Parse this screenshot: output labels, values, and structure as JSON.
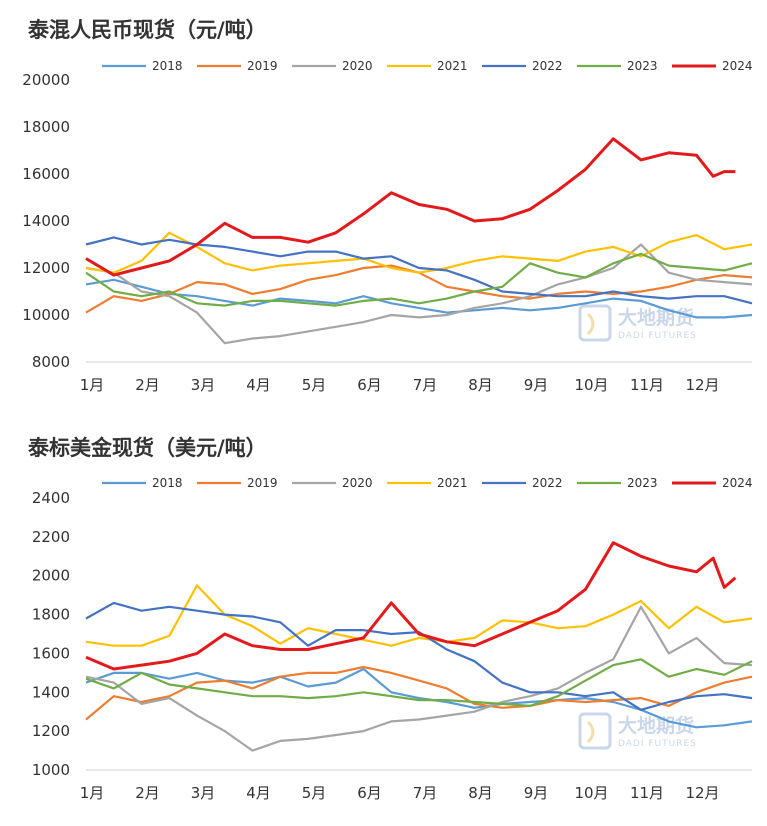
{
  "watermark": {
    "main": "大地期货",
    "sub": "DADI FUTURES"
  },
  "colors": {
    "2018": "#5b9bd5",
    "2019": "#ed7d31",
    "2020": "#a5a5a5",
    "2021": "#ffc000",
    "2022": "#4472c4",
    "2023": "#70ad47",
    "2024": "#e31a1c"
  },
  "chart_data": [
    {
      "type": "line",
      "title": "泰混人民币现货（元/吨）",
      "ylim": [
        8000,
        20000
      ],
      "yticks": [
        8000,
        10000,
        12000,
        14000,
        16000,
        18000,
        20000
      ],
      "xlim": [
        0,
        12
      ],
      "month_labels": [
        "1月",
        "2月",
        "3月",
        "4月",
        "5月",
        "6月",
        "7月",
        "8月",
        "9月",
        "10月",
        "11月",
        "12月"
      ],
      "grid": false,
      "legend": "top",
      "series": [
        {
          "name": "2018",
          "x": [
            0,
            0.5,
            1,
            1.5,
            2,
            2.5,
            3,
            3.5,
            4,
            4.5,
            5,
            5.5,
            6,
            6.5,
            7,
            7.5,
            8,
            8.5,
            9,
            9.5,
            10,
            10.5,
            11,
            11.5,
            12
          ],
          "y": [
            11300,
            11500,
            11200,
            10900,
            10800,
            10600,
            10400,
            10700,
            10600,
            10500,
            10800,
            10500,
            10300,
            10100,
            10200,
            10300,
            10200,
            10300,
            10500,
            10700,
            10600,
            10200,
            9900,
            9900,
            10000
          ]
        },
        {
          "name": "2019",
          "x": [
            0,
            0.5,
            1,
            1.5,
            2,
            2.5,
            3,
            3.5,
            4,
            4.5,
            5,
            5.5,
            6,
            6.5,
            7,
            7.5,
            8,
            8.5,
            9,
            9.5,
            10,
            10.5,
            11,
            11.5,
            12
          ],
          "y": [
            10100,
            10800,
            10600,
            10900,
            11400,
            11300,
            10900,
            11100,
            11500,
            11700,
            12000,
            12100,
            11800,
            11200,
            11000,
            10800,
            10700,
            10900,
            11000,
            10900,
            11000,
            11200,
            11500,
            11700,
            11600
          ]
        },
        {
          "name": "2020",
          "x": [
            0,
            0.5,
            1,
            1.5,
            2,
            2.5,
            3,
            3.5,
            4,
            4.5,
            5,
            5.5,
            6,
            6.5,
            7,
            7.5,
            8,
            8.5,
            9,
            9.5,
            10,
            10.5,
            11,
            11.5,
            12
          ],
          "y": [
            12000,
            11800,
            11000,
            10800,
            10100,
            8800,
            9000,
            9100,
            9300,
            9500,
            9700,
            10000,
            9900,
            10000,
            10300,
            10500,
            10800,
            11300,
            11600,
            12000,
            13000,
            11800,
            11500,
            11400,
            11300
          ]
        },
        {
          "name": "2021",
          "x": [
            0,
            0.5,
            1,
            1.5,
            2,
            2.5,
            3,
            3.5,
            4,
            4.5,
            5,
            5.5,
            6,
            6.5,
            7,
            7.5,
            8,
            8.5,
            9,
            9.5,
            10,
            10.5,
            11,
            11.5,
            12
          ],
          "y": [
            12000,
            11800,
            12300,
            13500,
            12900,
            12200,
            11900,
            12100,
            12200,
            12300,
            12400,
            12000,
            11800,
            12000,
            12300,
            12500,
            12400,
            12300,
            12700,
            12900,
            12500,
            13100,
            13400,
            12800,
            13000
          ]
        },
        {
          "name": "2022",
          "x": [
            0,
            0.5,
            1,
            1.5,
            2,
            2.5,
            3,
            3.5,
            4,
            4.5,
            5,
            5.5,
            6,
            6.5,
            7,
            7.5,
            8,
            8.5,
            9,
            9.5,
            10,
            10.5,
            11,
            11.5,
            12
          ],
          "y": [
            13000,
            13300,
            13000,
            13200,
            13000,
            12900,
            12700,
            12500,
            12700,
            12700,
            12400,
            12500,
            12000,
            11900,
            11500,
            11000,
            10900,
            10800,
            10800,
            11000,
            10800,
            10700,
            10800,
            10800,
            10500
          ]
        },
        {
          "name": "2023",
          "x": [
            0,
            0.5,
            1,
            1.5,
            2,
            2.5,
            3,
            3.5,
            4,
            4.5,
            5,
            5.5,
            6,
            6.5,
            7,
            7.5,
            8,
            8.5,
            9,
            9.5,
            10,
            10.5,
            11,
            11.5,
            12
          ],
          "y": [
            11800,
            11000,
            10800,
            11000,
            10500,
            10400,
            10600,
            10600,
            10500,
            10400,
            10600,
            10700,
            10500,
            10700,
            11000,
            11200,
            12200,
            11800,
            11600,
            12200,
            12600,
            12100,
            12000,
            11900,
            12200
          ]
        },
        {
          "name": "2024",
          "x": [
            0,
            0.5,
            1,
            1.5,
            2,
            2.5,
            3,
            3.5,
            4,
            4.5,
            5,
            5.5,
            6,
            6.5,
            7,
            7.5,
            8,
            8.5,
            9,
            9.5,
            10,
            10.5,
            11,
            11.3,
            11.5,
            11.7
          ],
          "y": [
            12400,
            11700,
            12000,
            12300,
            13000,
            13900,
            13300,
            13300,
            13100,
            13500,
            14300,
            15200,
            14700,
            14500,
            14000,
            14100,
            14500,
            15300,
            16200,
            17500,
            16600,
            16900,
            16800,
            15900,
            16100,
            16100
          ]
        }
      ]
    },
    {
      "type": "line",
      "title": "泰标美金现货（美元/吨）",
      "ylim": [
        1000,
        2400
      ],
      "yticks": [
        1000,
        1200,
        1400,
        1600,
        1800,
        2000,
        2200,
        2400
      ],
      "xlim": [
        0,
        12
      ],
      "month_labels": [
        "1月",
        "2月",
        "3月",
        "4月",
        "5月",
        "6月",
        "7月",
        "8月",
        "9月",
        "10月",
        "11月",
        "12月"
      ],
      "grid": false,
      "legend": "top",
      "series": [
        {
          "name": "2018",
          "x": [
            0,
            0.5,
            1,
            1.5,
            2,
            2.5,
            3,
            3.5,
            4,
            4.5,
            5,
            5.5,
            6,
            6.5,
            7,
            7.5,
            8,
            8.5,
            9,
            9.5,
            10,
            10.5,
            11,
            11.5,
            12
          ],
          "y": [
            1450,
            1500,
            1500,
            1470,
            1500,
            1460,
            1450,
            1480,
            1430,
            1450,
            1520,
            1400,
            1370,
            1350,
            1320,
            1340,
            1350,
            1360,
            1370,
            1350,
            1310,
            1250,
            1220,
            1230,
            1250
          ]
        },
        {
          "name": "2019",
          "x": [
            0,
            0.5,
            1,
            1.5,
            2,
            2.5,
            3,
            3.5,
            4,
            4.5,
            5,
            5.5,
            6,
            6.5,
            7,
            7.5,
            8,
            8.5,
            9,
            9.5,
            10,
            10.5,
            11,
            11.5,
            12
          ],
          "y": [
            1260,
            1380,
            1350,
            1380,
            1450,
            1460,
            1420,
            1480,
            1500,
            1500,
            1530,
            1500,
            1460,
            1420,
            1340,
            1320,
            1330,
            1360,
            1350,
            1360,
            1370,
            1330,
            1400,
            1450,
            1480
          ]
        },
        {
          "name": "2020",
          "x": [
            0,
            0.5,
            1,
            1.5,
            2,
            2.5,
            3,
            3.5,
            4,
            4.5,
            5,
            5.5,
            6,
            6.5,
            7,
            7.5,
            8,
            8.5,
            9,
            9.5,
            10,
            10.5,
            11,
            11.5,
            12
          ],
          "y": [
            1480,
            1450,
            1340,
            1370,
            1280,
            1200,
            1100,
            1150,
            1160,
            1180,
            1200,
            1250,
            1260,
            1280,
            1300,
            1350,
            1380,
            1420,
            1500,
            1570,
            1840,
            1600,
            1680,
            1550,
            1540
          ]
        },
        {
          "name": "2021",
          "x": [
            0,
            0.5,
            1,
            1.5,
            2,
            2.5,
            3,
            3.5,
            4,
            4.5,
            5,
            5.5,
            6,
            6.5,
            7,
            7.5,
            8,
            8.5,
            9,
            9.5,
            10,
            10.5,
            11,
            11.5,
            12
          ],
          "y": [
            1660,
            1640,
            1640,
            1690,
            1950,
            1800,
            1740,
            1650,
            1730,
            1700,
            1670,
            1640,
            1680,
            1660,
            1680,
            1770,
            1760,
            1730,
            1740,
            1800,
            1870,
            1730,
            1840,
            1760,
            1780
          ]
        },
        {
          "name": "2022",
          "x": [
            0,
            0.5,
            1,
            1.5,
            2,
            2.5,
            3,
            3.5,
            4,
            4.5,
            5,
            5.5,
            6,
            6.5,
            7,
            7.5,
            8,
            8.5,
            9,
            9.5,
            10,
            10.5,
            11,
            11.5,
            12
          ],
          "y": [
            1780,
            1860,
            1820,
            1840,
            1820,
            1800,
            1790,
            1760,
            1640,
            1720,
            1720,
            1700,
            1710,
            1620,
            1560,
            1450,
            1400,
            1400,
            1380,
            1400,
            1310,
            1350,
            1380,
            1390,
            1370
          ]
        },
        {
          "name": "2023",
          "x": [
            0,
            0.5,
            1,
            1.5,
            2,
            2.5,
            3,
            3.5,
            4,
            4.5,
            5,
            5.5,
            6,
            6.5,
            7,
            7.5,
            8,
            8.5,
            9,
            9.5,
            10,
            10.5,
            11,
            11.5,
            12
          ],
          "y": [
            1470,
            1420,
            1500,
            1440,
            1420,
            1400,
            1380,
            1380,
            1370,
            1380,
            1400,
            1380,
            1360,
            1360,
            1350,
            1340,
            1330,
            1380,
            1460,
            1540,
            1570,
            1480,
            1520,
            1490,
            1560
          ]
        },
        {
          "name": "2024",
          "x": [
            0,
            0.5,
            1,
            1.5,
            2,
            2.5,
            3,
            3.5,
            4,
            4.5,
            5,
            5.5,
            6,
            6.5,
            7,
            7.5,
            8,
            8.5,
            9,
            9.5,
            10,
            10.5,
            11,
            11.3,
            11.5,
            11.7
          ],
          "y": [
            1580,
            1520,
            1540,
            1560,
            1600,
            1700,
            1640,
            1620,
            1620,
            1650,
            1680,
            1860,
            1700,
            1660,
            1640,
            1700,
            1760,
            1820,
            1930,
            2170,
            2100,
            2050,
            2020,
            2090,
            1940,
            1990
          ]
        }
      ]
    }
  ]
}
